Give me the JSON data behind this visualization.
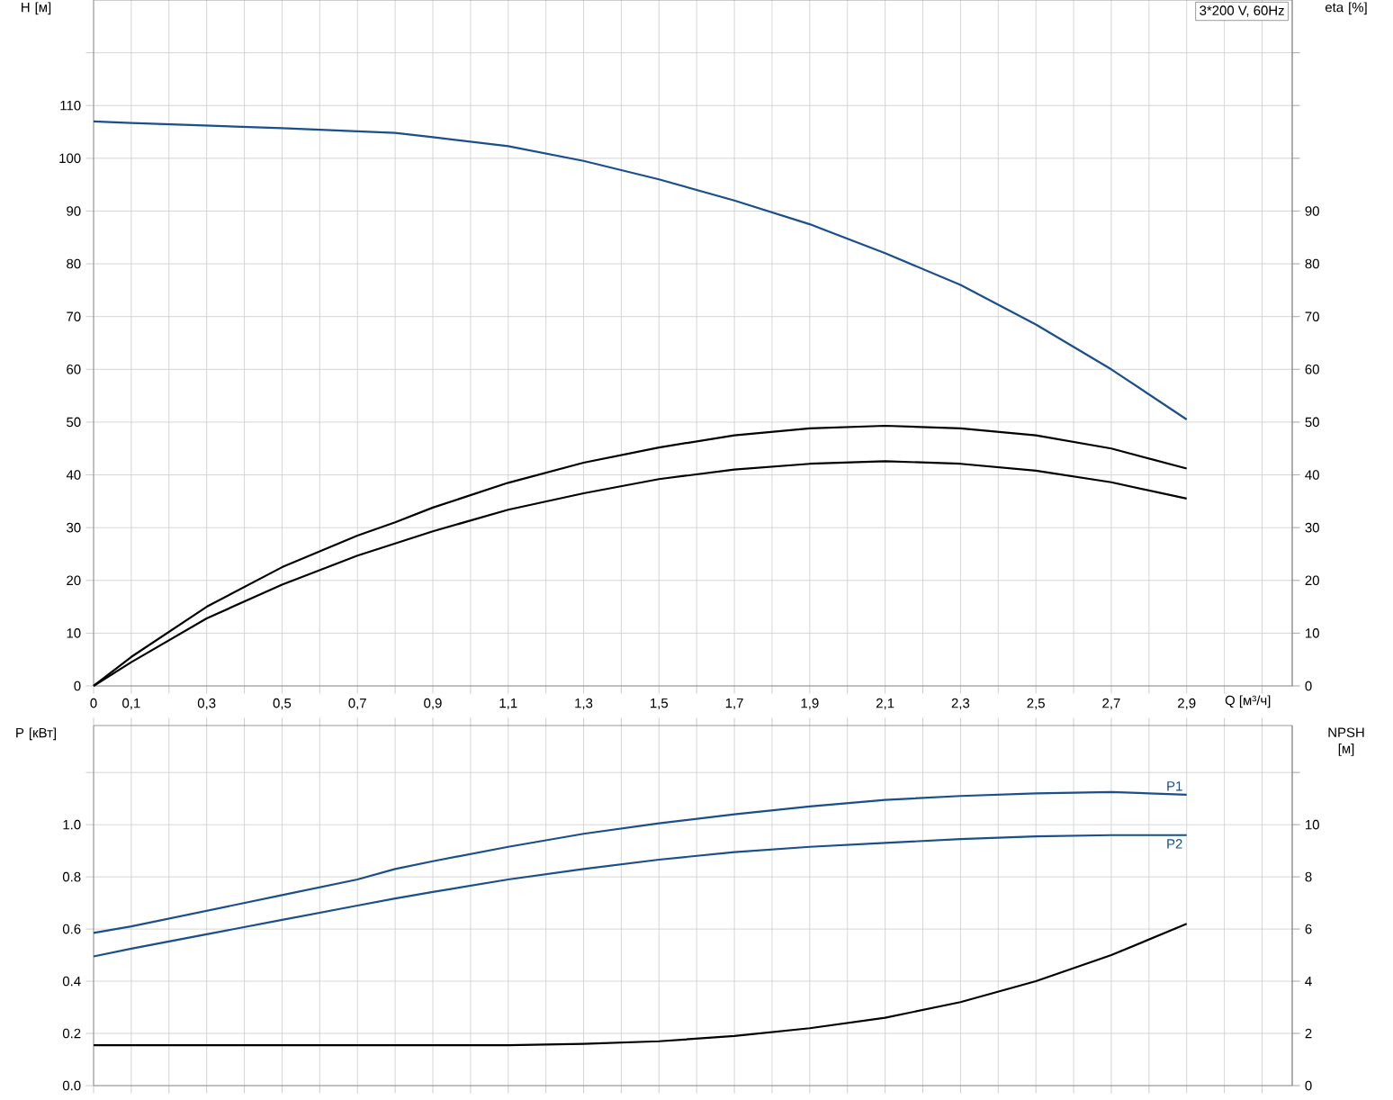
{
  "chart_data": [
    {
      "type": "line",
      "xlabel": "Q [м³/ч]",
      "ylabel": "H [м]",
      "y2label": "eta [%]",
      "annotations": [
        "3*200 V, 60Hz"
      ],
      "grid": true,
      "xlim": [
        0,
        3.18
      ],
      "ylim": [
        0,
        130
      ],
      "y2lim": [
        0,
        130
      ],
      "xticks": [
        0,
        {
          "value": 0.1,
          "label": "0,1"
        },
        {
          "value": 0.2,
          "label": null
        },
        {
          "value": 0.3,
          "label": "0,3"
        },
        {
          "value": 0.4,
          "label": null
        },
        {
          "value": 0.5,
          "label": "0,5"
        },
        {
          "value": 0.6,
          "label": null
        },
        {
          "value": 0.7,
          "label": "0,7"
        },
        {
          "value": 0.8,
          "label": null
        },
        {
          "value": 0.9,
          "label": "0,9"
        },
        {
          "value": 1.0,
          "label": null
        },
        {
          "value": 1.1,
          "label": "1,1"
        },
        {
          "value": 1.2,
          "label": null
        },
        {
          "value": 1.3,
          "label": "1,3"
        },
        {
          "value": 1.4,
          "label": null
        },
        {
          "value": 1.5,
          "label": "1,5"
        },
        {
          "value": 1.6,
          "label": null
        },
        {
          "value": 1.7,
          "label": "1,7"
        },
        {
          "value": 1.8,
          "label": null
        },
        {
          "value": 1.9,
          "label": "1,9"
        },
        {
          "value": 2.0,
          "label": null
        },
        {
          "value": 2.1,
          "label": "2,1"
        },
        {
          "value": 2.2,
          "label": null
        },
        {
          "value": 2.3,
          "label": "2,3"
        },
        {
          "value": 2.4,
          "label": null
        },
        {
          "value": 2.5,
          "label": "2,5"
        },
        {
          "value": 2.6,
          "label": null
        },
        {
          "value": 2.7,
          "label": "2,7"
        },
        {
          "value": 2.8,
          "label": null
        },
        {
          "value": 2.9,
          "label": "2,9"
        },
        {
          "value": 3.0,
          "label": null
        },
        {
          "value": 3.1,
          "label": null
        }
      ],
      "yticks": [
        0,
        10,
        20,
        30,
        40,
        50,
        60,
        70,
        80,
        90,
        100,
        110,
        {
          "value": 120,
          "label": null
        }
      ],
      "y2ticks": [
        0,
        10,
        20,
        30,
        40,
        50,
        60,
        70,
        80,
        90,
        {
          "value": 100,
          "label": null
        },
        {
          "value": 110,
          "label": null
        },
        {
          "value": 120,
          "label": null
        }
      ],
      "x": [
        0,
        0.1,
        0.3,
        0.5,
        0.7,
        0.8,
        0.9,
        1.1,
        1.3,
        1.5,
        1.7,
        1.9,
        2.1,
        2.3,
        2.5,
        2.7,
        2.9
      ],
      "series": [
        {
          "color": "#1a4f8b",
          "values": [
            107,
            106.7,
            106.2,
            105.7,
            105.1,
            104.8,
            104,
            102.3,
            99.5,
            96,
            92,
            87.5,
            82,
            76,
            68.5,
            60,
            50.5
          ]
        },
        {
          "color": "#000000",
          "axis": "y2",
          "values": [
            0,
            5.5,
            15,
            22.5,
            28.5,
            31,
            33.8,
            38.5,
            42.3,
            45.2,
            47.5,
            48.8,
            49.3,
            48.8,
            47.5,
            45,
            41.2
          ]
        },
        {
          "color": "#000000",
          "axis": "y2",
          "values": [
            0,
            4.5,
            12.8,
            19.2,
            24.7,
            27,
            29.3,
            33.4,
            36.5,
            39.2,
            41,
            42.1,
            42.6,
            42.1,
            40.8,
            38.6,
            35.5
          ]
        }
      ]
    },
    {
      "type": "line",
      "ylabel": "P [кВт]",
      "y2label": "NPSH [м]",
      "grid": true,
      "tick_labels": "y",
      "xlim": [
        0,
        3.18
      ],
      "ylim": [
        0,
        1.38
      ],
      "y2lim": [
        0,
        13.8
      ],
      "xticks": [
        0,
        0.1,
        0.2,
        0.3,
        0.4,
        0.5,
        0.6,
        0.7,
        0.8,
        0.9,
        1.0,
        1.1,
        1.2,
        1.3,
        1.4,
        1.5,
        1.6,
        1.7,
        1.8,
        1.9,
        2.0,
        2.1,
        2.2,
        2.3,
        2.4,
        2.5,
        2.6,
        2.7,
        2.8,
        2.9,
        3.0,
        3.1
      ],
      "yticks": [
        {
          "value": 0,
          "label": "0.0"
        },
        0.2,
        0.4,
        0.6,
        0.8,
        {
          "value": 1.0,
          "label": "1.0"
        },
        {
          "value": 1.2,
          "label": null
        }
      ],
      "y2ticks": [
        0,
        2,
        4,
        6,
        8,
        10,
        {
          "value": 12,
          "label": null
        }
      ],
      "x": [
        0,
        0.1,
        0.3,
        0.5,
        0.7,
        0.8,
        0.9,
        1.1,
        1.3,
        1.5,
        1.7,
        1.9,
        2.1,
        2.3,
        2.5,
        2.7,
        2.9
      ],
      "series": [
        {
          "name": "P1",
          "color": "#1a4f8b",
          "values": [
            0.585,
            0.61,
            0.67,
            0.73,
            0.79,
            0.83,
            0.86,
            0.915,
            0.965,
            1.005,
            1.04,
            1.07,
            1.095,
            1.11,
            1.12,
            1.125,
            1.115
          ]
        },
        {
          "name": "P2",
          "color": "#1a4f8b",
          "values": [
            0.495,
            0.525,
            0.58,
            0.635,
            0.69,
            0.717,
            0.742,
            0.79,
            0.83,
            0.866,
            0.895,
            0.915,
            0.93,
            0.945,
            0.955,
            0.96,
            0.96
          ]
        },
        {
          "color": "#000000",
          "axis": "y2",
          "values": [
            1.55,
            1.55,
            1.55,
            1.55,
            1.55,
            1.55,
            1.55,
            1.55,
            1.6,
            1.7,
            1.9,
            2.2,
            2.6,
            3.2,
            4.0,
            5.0,
            6.2
          ]
        }
      ]
    }
  ]
}
